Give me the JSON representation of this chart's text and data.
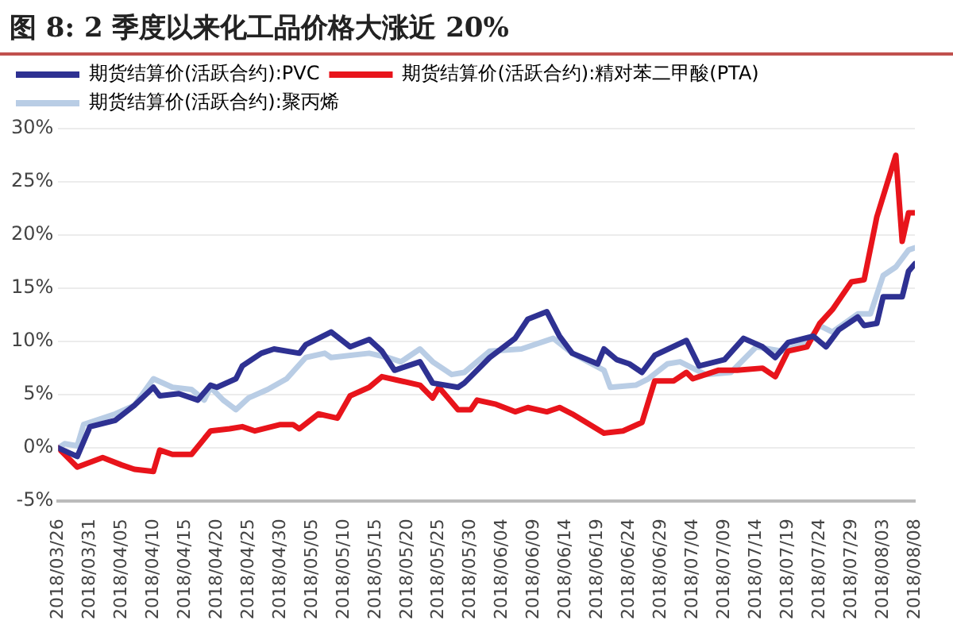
{
  "chart_data": {
    "type": "line",
    "title": "图 8:  2 季度以来化工品价格大涨近 20%",
    "xlim": [
      "2018-03-26",
      "2018-08-08"
    ],
    "xticks": [
      {
        "value": "2018-03-26",
        "label": "2018/03/26"
      },
      {
        "value": "2018-03-31",
        "label": "2018/03/31"
      },
      {
        "value": "2018-04-05",
        "label": "2018/04/05"
      },
      {
        "value": "2018-04-10",
        "label": "2018/04/10"
      },
      {
        "value": "2018-04-15",
        "label": "2018/04/15"
      },
      {
        "value": "2018-04-20",
        "label": "2018/04/20"
      },
      {
        "value": "2018-04-25",
        "label": "2018/04/25"
      },
      {
        "value": "2018-04-30",
        "label": "2018/04/30"
      },
      {
        "value": "2018-05-05",
        "label": "2018/05/05"
      },
      {
        "value": "2018-05-10",
        "label": "2018/05/10"
      },
      {
        "value": "2018-05-15",
        "label": "2018/05/15"
      },
      {
        "value": "2018-05-20",
        "label": "2018/05/20"
      },
      {
        "value": "2018-05-25",
        "label": "2018/05/25"
      },
      {
        "value": "2018-05-30",
        "label": "2018/05/30"
      },
      {
        "value": "2018-06-04",
        "label": "2018/06/04"
      },
      {
        "value": "2018-06-09",
        "label": "2018/06/09"
      },
      {
        "value": "2018-06-14",
        "label": "2018/06/14"
      },
      {
        "value": "2018-06-19",
        "label": "2018/06/19"
      },
      {
        "value": "2018-06-24",
        "label": "2018/06/24"
      },
      {
        "value": "2018-06-29",
        "label": "2018/06/29"
      },
      {
        "value": "2018-07-04",
        "label": "2018/07/04"
      },
      {
        "value": "2018-07-09",
        "label": "2018/07/09"
      },
      {
        "value": "2018-07-14",
        "label": "2018/07/14"
      },
      {
        "value": "2018-07-19",
        "label": "2018/07/19"
      },
      {
        "value": "2018-07-24",
        "label": "2018/07/24"
      },
      {
        "value": "2018-07-29",
        "label": "2018/07/29"
      },
      {
        "value": "2018-08-03",
        "label": "2018/08/03"
      },
      {
        "value": "2018-08-08",
        "label": "2018/08/08"
      }
    ],
    "ylim": [
      -5,
      30
    ],
    "yticks": [
      {
        "value": -5,
        "label": "-5%"
      },
      {
        "value": 0,
        "label": "0%"
      },
      {
        "value": 5,
        "label": "5%"
      },
      {
        "value": 10,
        "label": "10%"
      },
      {
        "value": 15,
        "label": "15%"
      },
      {
        "value": 20,
        "label": "20%"
      },
      {
        "value": 25,
        "label": "25%"
      },
      {
        "value": 30,
        "label": "30%"
      }
    ],
    "grid": "y",
    "legend": "top left",
    "marker": "none",
    "line_style": "solid",
    "series": [
      {
        "name": "期货结算价(活跃合约):PVC",
        "color": "#2e3192",
        "x": [
          "2018-03-26",
          "2018-03-29",
          "2018-03-31",
          "2018-04-04",
          "2018-04-07",
          "2018-04-10",
          "2018-04-11",
          "2018-04-14",
          "2018-04-17",
          "2018-04-19",
          "2018-04-20",
          "2018-04-23",
          "2018-04-24",
          "2018-04-27",
          "2018-04-29",
          "2018-05-03",
          "2018-05-04",
          "2018-05-06",
          "2018-05-08",
          "2018-05-11",
          "2018-05-14",
          "2018-05-16",
          "2018-05-18",
          "2018-05-22",
          "2018-05-24",
          "2018-05-28",
          "2018-05-29",
          "2018-06-02",
          "2018-06-06",
          "2018-06-08",
          "2018-06-11",
          "2018-06-13",
          "2018-06-15",
          "2018-06-19",
          "2018-06-20",
          "2018-06-22",
          "2018-06-24",
          "2018-06-26",
          "2018-06-28",
          "2018-07-03",
          "2018-07-05",
          "2018-07-09",
          "2018-07-12",
          "2018-07-15",
          "2018-07-17",
          "2018-07-19",
          "2018-07-23",
          "2018-07-25",
          "2018-07-27",
          "2018-07-30",
          "2018-07-31",
          "2018-08-02",
          "2018-08-03",
          "2018-08-06",
          "2018-08-07",
          "2018-08-08"
        ],
        "values": [
          0,
          -0.8,
          2.0,
          2.6,
          4.0,
          5.7,
          4.9,
          5.1,
          4.5,
          5.9,
          5.7,
          6.5,
          7.7,
          8.9,
          9.3,
          8.9,
          9.7,
          10.3,
          10.9,
          9.5,
          10.2,
          9.1,
          7.3,
          8.1,
          6.1,
          5.7,
          6.1,
          8.5,
          10.3,
          12.1,
          12.8,
          10.5,
          8.9,
          7.9,
          9.3,
          8.3,
          7.9,
          7.1,
          8.7,
          10.1,
          7.7,
          8.3,
          10.3,
          9.5,
          8.5,
          9.9,
          10.5,
          9.5,
          11.1,
          12.3,
          11.5,
          11.7,
          14.2,
          14.2,
          16.6,
          17.3
        ]
      },
      {
        "name": "期货结算价(活跃合约):精对苯二甲酸(PTA)",
        "color": "#e8141b",
        "x": [
          "2018-03-26",
          "2018-03-29",
          "2018-04-02",
          "2018-04-05",
          "2018-04-07",
          "2018-04-10",
          "2018-04-11",
          "2018-04-13",
          "2018-04-16",
          "2018-04-19",
          "2018-04-22",
          "2018-04-24",
          "2018-04-26",
          "2018-04-30",
          "2018-05-02",
          "2018-05-03",
          "2018-05-06",
          "2018-05-09",
          "2018-05-11",
          "2018-05-14",
          "2018-05-16",
          "2018-05-19",
          "2018-05-22",
          "2018-05-24",
          "2018-05-25",
          "2018-05-28",
          "2018-05-30",
          "2018-05-31",
          "2018-06-03",
          "2018-06-06",
          "2018-06-08",
          "2018-06-11",
          "2018-06-13",
          "2018-06-15",
          "2018-06-20",
          "2018-06-23",
          "2018-06-26",
          "2018-06-28",
          "2018-07-01",
          "2018-07-03",
          "2018-07-04",
          "2018-07-08",
          "2018-07-11",
          "2018-07-15",
          "2018-07-17",
          "2018-07-19",
          "2018-07-22",
          "2018-07-24",
          "2018-07-26",
          "2018-07-29",
          "2018-07-31",
          "2018-08-02",
          "2018-08-05",
          "2018-08-06",
          "2018-08-07",
          "2018-08-08"
        ],
        "values": [
          0,
          -1.8,
          -0.9,
          -1.6,
          -2.0,
          -2.2,
          -0.2,
          -0.6,
          -0.6,
          1.6,
          1.8,
          2.0,
          1.6,
          2.2,
          2.2,
          1.8,
          3.2,
          2.8,
          4.9,
          5.7,
          6.7,
          6.3,
          5.9,
          4.7,
          5.7,
          3.6,
          3.6,
          4.5,
          4.1,
          3.4,
          3.8,
          3.4,
          3.8,
          3.2,
          1.4,
          1.6,
          2.4,
          6.3,
          6.3,
          7.1,
          6.5,
          7.3,
          7.3,
          7.5,
          6.7,
          9.1,
          9.5,
          11.7,
          13.0,
          15.6,
          15.8,
          21.7,
          27.5,
          19.4,
          22.1,
          22.1
        ]
      },
      {
        "name": "期货结算价(活跃合约):聚丙烯",
        "color": "#b9cde5",
        "x": [
          "2018-03-26",
          "2018-03-27",
          "2018-03-29",
          "2018-03-30",
          "2018-04-04",
          "2018-04-07",
          "2018-04-10",
          "2018-04-13",
          "2018-04-16",
          "2018-04-18",
          "2018-04-19",
          "2018-04-21",
          "2018-04-23",
          "2018-04-25",
          "2018-04-28",
          "2018-05-01",
          "2018-05-04",
          "2018-05-07",
          "2018-05-08",
          "2018-05-14",
          "2018-05-17",
          "2018-05-19",
          "2018-05-22",
          "2018-05-24",
          "2018-05-27",
          "2018-05-29",
          "2018-06-02",
          "2018-06-07",
          "2018-06-12",
          "2018-06-15",
          "2018-06-20",
          "2018-06-21",
          "2018-06-25",
          "2018-06-27",
          "2018-06-30",
          "2018-07-02",
          "2018-07-06",
          "2018-07-10",
          "2018-07-14",
          "2018-07-18",
          "2018-07-22",
          "2018-07-24",
          "2018-07-26",
          "2018-07-30",
          "2018-08-01",
          "2018-08-03",
          "2018-08-05",
          "2018-08-07",
          "2018-08-08"
        ],
        "values": [
          0,
          0.4,
          0.2,
          2.2,
          3.2,
          4.0,
          6.5,
          5.7,
          5.5,
          4.5,
          5.7,
          4.5,
          3.6,
          4.7,
          5.5,
          6.5,
          8.5,
          8.9,
          8.5,
          8.9,
          8.5,
          8.1,
          9.3,
          8.1,
          6.9,
          7.1,
          9.1,
          9.3,
          10.3,
          8.9,
          7.3,
          5.7,
          5.9,
          6.5,
          7.9,
          8.1,
          6.9,
          7.1,
          9.5,
          9.1,
          9.9,
          11.5,
          10.9,
          12.6,
          12.6,
          16.2,
          17.0,
          18.6,
          18.8
        ]
      }
    ]
  }
}
